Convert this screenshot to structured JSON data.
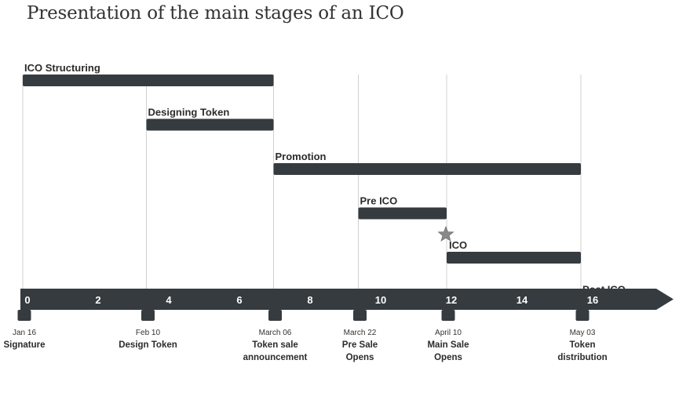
{
  "title": "Presentation of the main stages of an ICO",
  "colors": {
    "bar": "#353b3f",
    "axis": "#353b3f",
    "guide": "#d0d0d0",
    "star": "#8a8a8a"
  },
  "chart_data": {
    "type": "gantt",
    "axis": {
      "min": 0,
      "max": 16,
      "ticks": [
        0,
        2,
        4,
        6,
        8,
        10,
        12,
        14,
        16
      ]
    },
    "tasks": [
      {
        "label": "ICO Structuring",
        "start": 0,
        "end": 7.1
      },
      {
        "label": "Designing Token",
        "start": 3.5,
        "end": 7.1
      },
      {
        "label": "Promotion",
        "start": 7.1,
        "end": 15.8
      },
      {
        "label": "Pre ICO",
        "start": 9.5,
        "end": 12
      },
      {
        "label": "ICO",
        "start": 12,
        "end": 15.8
      },
      {
        "label": "Post ICO",
        "start": 15.8,
        "end": 17.2
      }
    ],
    "milestones": [
      {
        "x": 0,
        "date": "Jan 16",
        "label": [
          "Signature"
        ]
      },
      {
        "x": 3.5,
        "date": "Feb 10",
        "label": [
          "Design Token"
        ]
      },
      {
        "x": 7.1,
        "date": "March 06",
        "label": [
          "Token sale",
          "announcement"
        ]
      },
      {
        "x": 9.5,
        "date": "March 22",
        "label": [
          "Pre Sale",
          "Opens"
        ]
      },
      {
        "x": 12,
        "date": "April 10",
        "label": [
          "Main Sale",
          "Opens"
        ]
      },
      {
        "x": 15.8,
        "date": "May 03",
        "label": [
          "Token",
          "distribution"
        ]
      }
    ],
    "star_at": 12
  }
}
